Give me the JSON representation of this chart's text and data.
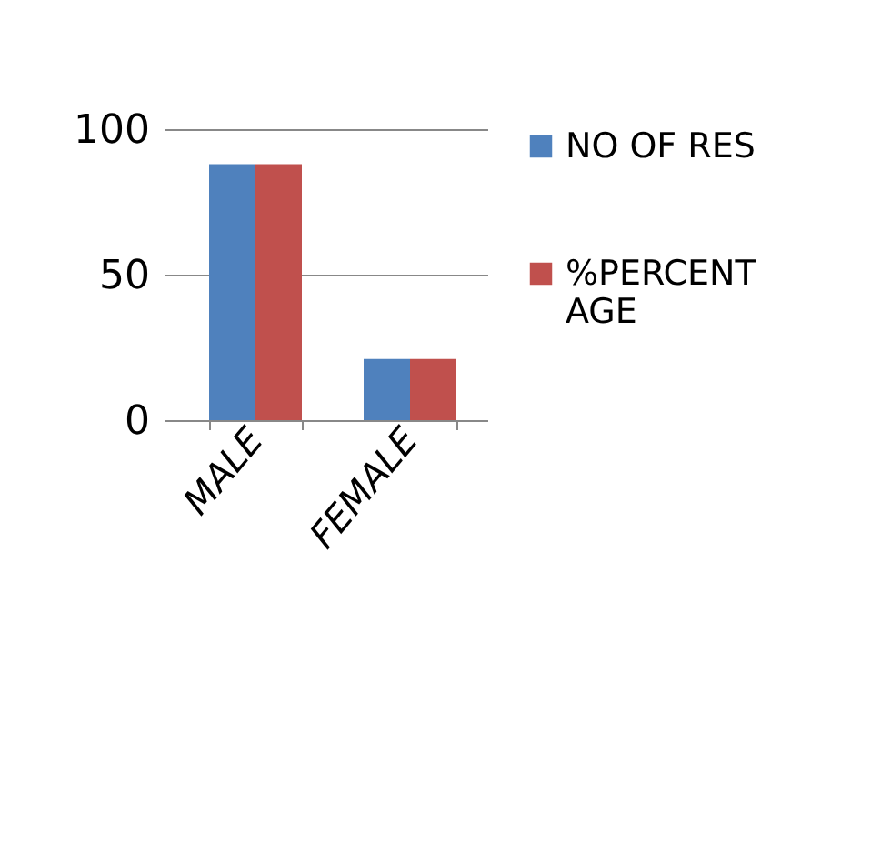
{
  "chart_data": {
    "type": "bar",
    "categories": [
      "MALE",
      "FEMALE"
    ],
    "series": [
      {
        "name": "NO OF RES",
        "color": "#4f81bd",
        "values": [
          88,
          21
        ]
      },
      {
        "name": "%PERCENT AGE",
        "color": "#c0504d",
        "values": [
          88,
          21
        ]
      }
    ],
    "ylim": [
      0,
      100
    ],
    "yticks": [
      0,
      50,
      100
    ],
    "grid": "y",
    "legend": "right"
  }
}
